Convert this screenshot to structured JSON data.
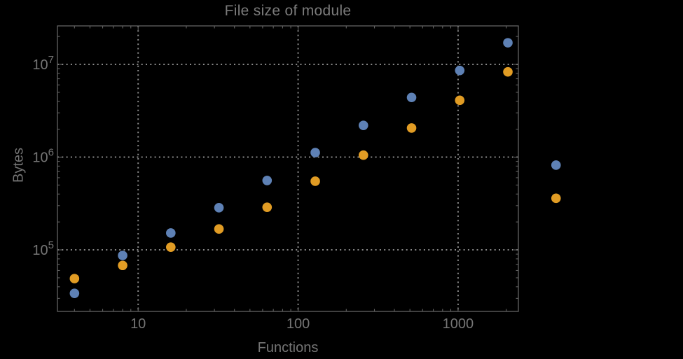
{
  "chart_data": {
    "type": "scatter",
    "title": "File size of module",
    "xlabel": "Functions",
    "ylabel": "Bytes",
    "xscale": "log",
    "yscale": "log",
    "grid": "dotted, major gridlines only",
    "legend": "none",
    "xlim": [
      3.13,
      2382
    ],
    "ylim": [
      21700,
      26000000
    ],
    "x_ticks": [
      10,
      100,
      1000
    ],
    "x_tick_labels": [
      "10",
      "100",
      "1000"
    ],
    "y_ticks": [
      100000,
      1000000,
      10000000
    ],
    "y_tick_labels": [
      "10^5",
      "10^6",
      "10^7"
    ],
    "x": [
      4,
      8,
      16,
      32,
      64,
      128,
      256,
      512,
      1024,
      2048,
      4096
    ],
    "series": [
      {
        "name": "blue-series",
        "color": "#5e81b5",
        "values": [
          34000,
          87000,
          152000,
          285000,
          560000,
          1120000,
          2200000,
          4400000,
          8600000,
          17100000,
          820000
        ]
      },
      {
        "name": "orange-series",
        "color": "#e19c24",
        "values": [
          49000,
          68000,
          107000,
          168000,
          288000,
          550000,
          1050000,
          2060000,
          4100000,
          8300000,
          360000
        ]
      }
    ],
    "colors": {
      "background": "#000000",
      "frame": "#636363",
      "grid": "#8a8a8a",
      "text": "#757575"
    }
  }
}
